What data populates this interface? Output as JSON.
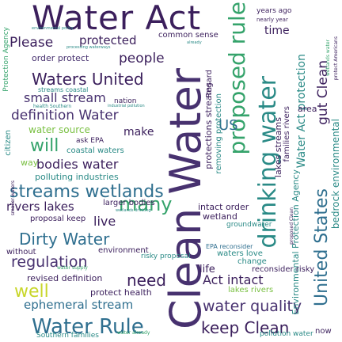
{
  "words": {
    "water_act": "Water Act",
    "clean_water": "Clean Water",
    "drinking_water": "drinking water",
    "proposed_rule": "proposed rule",
    "streams_wetlands": "streams wetlands",
    "waters_united": "Waters United",
    "united_states": "United States",
    "water_rule": "Water Rule",
    "dirty_water": "Dirty Water",
    "keep_clean": "keep Clean",
    "water_quality": "water quality",
    "definition_water": "definition Water",
    "small_stream": "small stream",
    "bodies_water": "bodies water",
    "rivers_lakes": "rivers lakes",
    "regulation": "regulation",
    "many": "many",
    "will": "will",
    "need": "need",
    "people": "people",
    "protected": "protected",
    "please": "Please",
    "act_intact": "Act intact",
    "ephemeral_stream": "ephemeral stream",
    "well": "well",
    "live": "live",
    "us": "US",
    "gut_clean": "gut Clean",
    "water_act_protection": "Water Act protection",
    "environmental_protection_agency": "Environmental Protection Agency",
    "bedrock_environmental": "bedrock environmental",
    "water_source": "water source",
    "time": "time",
    "make": "make",
    "common_sense": "common sense",
    "order_protect": "order protect",
    "streams_coastal": "streams coastal",
    "coastal_waters": "coastal waters",
    "polluting_industries": "polluting industries",
    "protect_health": "protect health",
    "revised_definition": "revised definition",
    "larger_bodies": "larger bodies",
    "intact_order": "intact order",
    "wetland": "wetland",
    "environment": "environment",
    "risky_proposal": "risky proposal",
    "change": "change",
    "life": "life",
    "reconsider_risky": "reconsider risky",
    "lakes_rivers": "lakes rivers",
    "pollution_water": "pollution water",
    "southern_families": "Southern families",
    "now": "now",
    "area": "area",
    "regard": "Regard",
    "years_ago": "years ago",
    "nearly_year": "nearly year",
    "protection_agency": "Protection Agency",
    "proposal_keep": "proposal keep",
    "without": "without",
    "citizen": "citizen",
    "way": "way",
    "ask_epa": "ask EPA",
    "removing_protection": "removing protection",
    "protections_streams": "protections streams",
    "waters_love": "waters love",
    "lakes_streams": "lakes streams",
    "families_rivers": "families rivers",
    "groundwater": "groundwater",
    "nation": "nation",
    "epa_reconsider": "EPA reconsider",
    "environmental_policy": "environmental policy",
    "processing_waterways": "processing waterways",
    "health_southern": "health Southern",
    "industrial_pollution": "industrial pollution",
    "already": "already",
    "protect_americans": "protect Americans",
    "proposed_clean": "proposed Clean",
    "smaller_waters": "smaller waters",
    "water_supply": "water supply",
    "wetlands_drinking": "wetlands drinking",
    "water_already": "water already",
    "wetlands_water": "wetlands water",
    "keep": "keep"
  },
  "colors": {
    "background": "#ffffff",
    "deep_purple": "#3b1f5c",
    "indigo": "#3a4d8f",
    "teal_blue": "#2f6f8f",
    "teal": "#2a8a86",
    "green": "#35a36b",
    "lime": "#7ac043",
    "yellow_green": "#c8d62a"
  }
}
